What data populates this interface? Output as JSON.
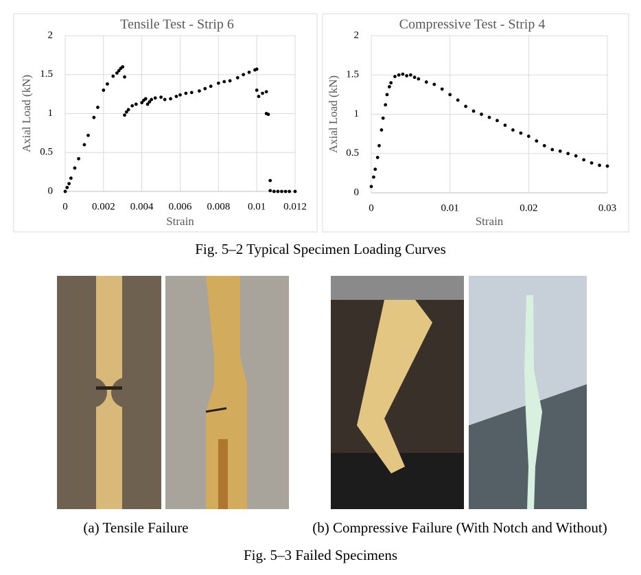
{
  "chart_data": [
    {
      "type": "scatter",
      "title": "Tensile Test - Strip 6",
      "x_label": "Strain",
      "y_label": "Axial Load (kN)",
      "color": "#000000",
      "grid": true,
      "xlim": [
        0,
        0.012
      ],
      "xticks": [
        0,
        0.002,
        0.004,
        0.006,
        0.008,
        0.01,
        0.012
      ],
      "ylim": [
        0,
        2
      ],
      "yticks": [
        0,
        0.5,
        1,
        1.5,
        2
      ],
      "x": [
        0,
        0.0001,
        0.0002,
        0.0003,
        0.0005,
        0.0007,
        0.001,
        0.0012,
        0.0015,
        0.0017,
        0.002,
        0.0022,
        0.0025,
        0.0027,
        0.0028,
        0.0029,
        0.003,
        0.0031,
        0.0031,
        0.0032,
        0.0033,
        0.0035,
        0.0037,
        0.004,
        0.0041,
        0.0042,
        0.0043,
        0.0044,
        0.0045,
        0.0047,
        0.005,
        0.0052,
        0.0055,
        0.0058,
        0.006,
        0.0063,
        0.0066,
        0.007,
        0.0073,
        0.0076,
        0.008,
        0.0083,
        0.0086,
        0.009,
        0.0093,
        0.0096,
        0.0099,
        0.01,
        0.01,
        0.0101,
        0.0103,
        0.0105,
        0.0105,
        0.0106,
        0.0107,
        0.0107,
        0.0109,
        0.0111,
        0.0113,
        0.0115,
        0.0117,
        0.012
      ],
      "values": [
        0,
        0.05,
        0.1,
        0.17,
        0.3,
        0.42,
        0.6,
        0.72,
        0.95,
        1.08,
        1.3,
        1.38,
        1.48,
        1.52,
        1.55,
        1.58,
        1.6,
        1.47,
        0.98,
        1.02,
        1.05,
        1.1,
        1.12,
        1.14,
        1.17,
        1.19,
        1.12,
        1.15,
        1.18,
        1.2,
        1.21,
        1.18,
        1.19,
        1.22,
        1.24,
        1.26,
        1.27,
        1.29,
        1.32,
        1.35,
        1.39,
        1.41,
        1.42,
        1.46,
        1.5,
        1.53,
        1.56,
        1.57,
        1.3,
        1.22,
        1.26,
        1.28,
        1.0,
        0.99,
        0.14,
        0.01,
        0,
        0,
        0,
        0,
        0,
        0
      ]
    },
    {
      "type": "scatter",
      "title": "Compressive Test - Strip 4",
      "x_label": "Strain",
      "y_label": "Axial Load (kN)",
      "color": "#000000",
      "grid": true,
      "xlim": [
        0,
        0.03
      ],
      "xticks": [
        0,
        0.01,
        0.02,
        0.03
      ],
      "ylim": [
        0,
        2
      ],
      "yticks": [
        0,
        0.5,
        1,
        1.5,
        2
      ],
      "x": [
        0,
        0.0003,
        0.0005,
        0.0008,
        0.001,
        0.0013,
        0.0015,
        0.0018,
        0.002,
        0.0023,
        0.0025,
        0.003,
        0.0035,
        0.004,
        0.0045,
        0.005,
        0.0055,
        0.006,
        0.007,
        0.008,
        0.009,
        0.01,
        0.011,
        0.012,
        0.013,
        0.014,
        0.015,
        0.016,
        0.017,
        0.018,
        0.019,
        0.02,
        0.021,
        0.022,
        0.023,
        0.024,
        0.025,
        0.026,
        0.027,
        0.028,
        0.029,
        0.03
      ],
      "values": [
        0.08,
        0.2,
        0.3,
        0.45,
        0.6,
        0.8,
        0.95,
        1.12,
        1.25,
        1.35,
        1.4,
        1.48,
        1.5,
        1.51,
        1.49,
        1.5,
        1.47,
        1.45,
        1.41,
        1.38,
        1.32,
        1.25,
        1.18,
        1.1,
        1.04,
        1.0,
        0.96,
        0.92,
        0.86,
        0.8,
        0.76,
        0.72,
        0.66,
        0.6,
        0.55,
        0.53,
        0.5,
        0.47,
        0.42,
        0.38,
        0.35,
        0.34
      ]
    }
  ],
  "figures": {
    "charts_caption": "Fig. 5–2 Typical Specimen Loading Curves",
    "photo_caption_a": "(a) Tensile Failure",
    "photo_caption_b": "(b) Compressive Failure (With Notch and Without)",
    "photos_caption": "Fig. 5–3 Failed Specimens"
  }
}
